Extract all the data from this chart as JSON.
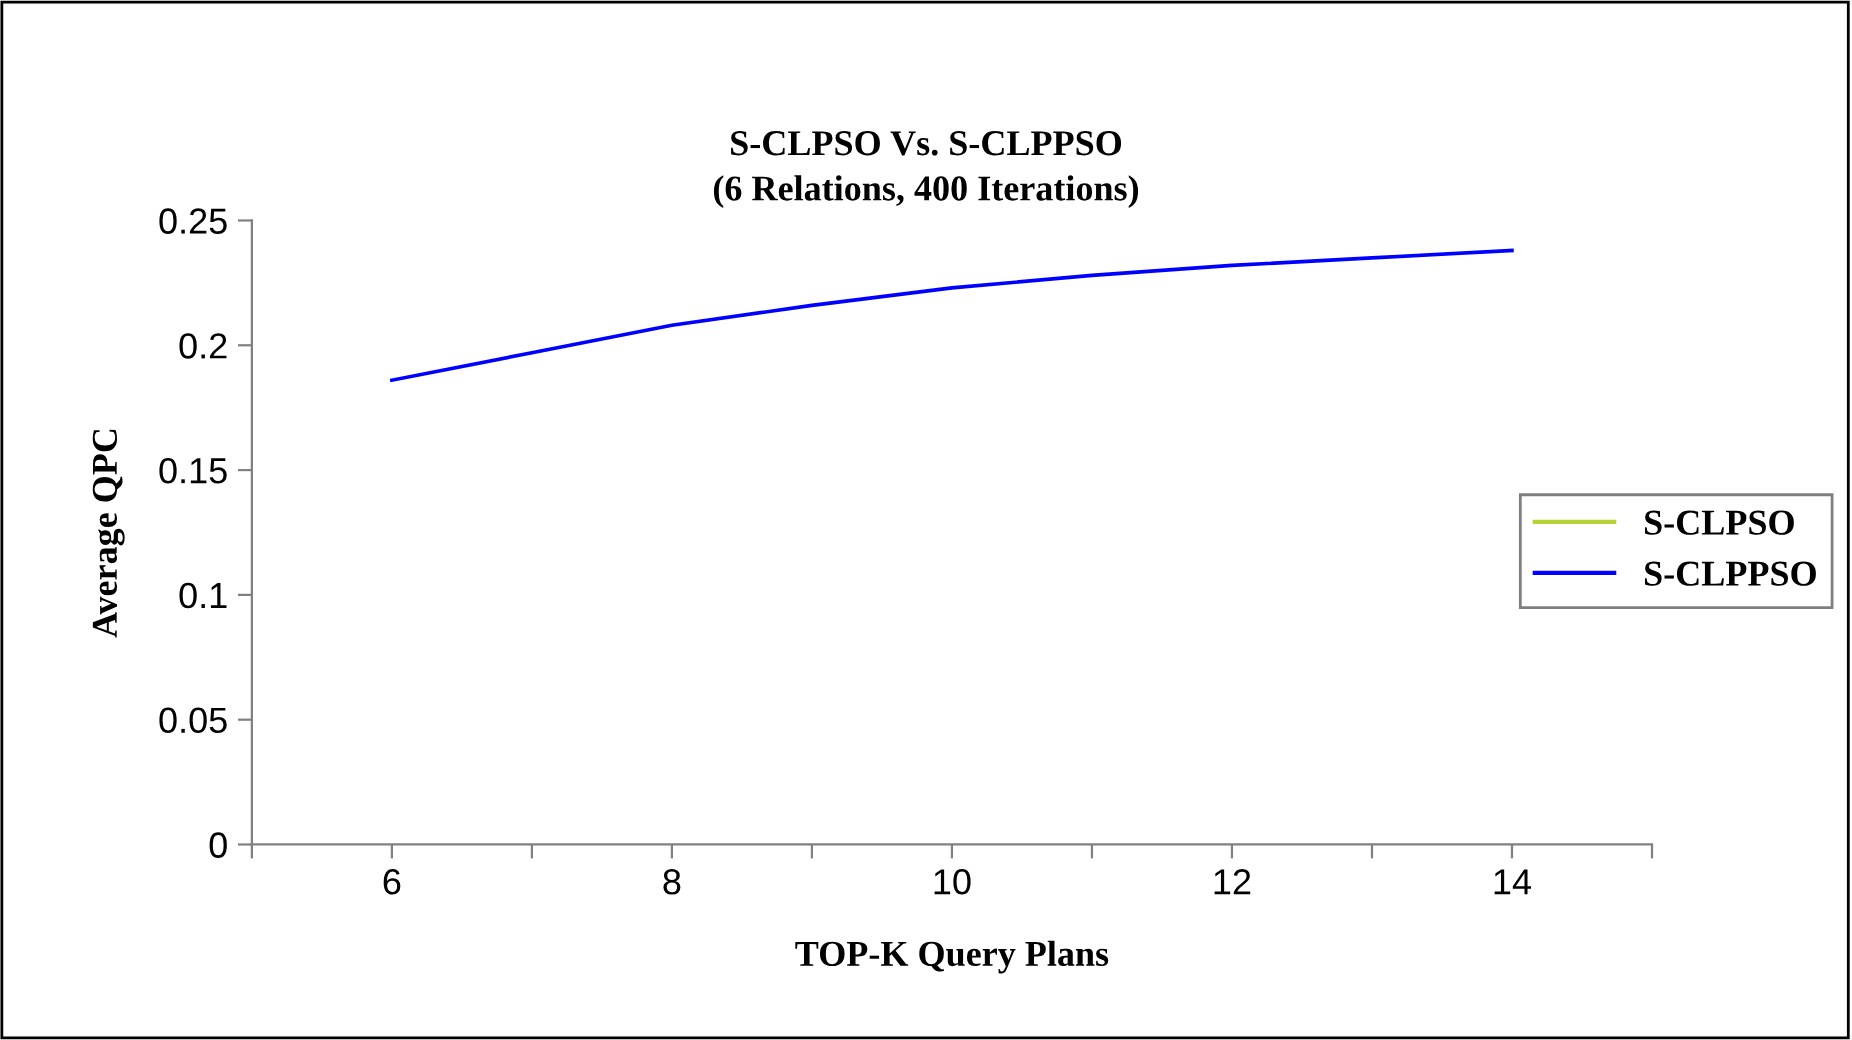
{
  "chart_data": {
    "type": "line",
    "title": "S-CLPSO Vs. S-CLPPSO\n(6 Relations, 400 Iterations)",
    "xlabel": "TOP-K Query Plans",
    "ylabel": "Average QPC",
    "x": [
      6,
      7,
      8,
      9,
      10,
      11,
      12,
      13,
      14
    ],
    "series": [
      {
        "name": "S-CLPSO",
        "color": "#b5d335",
        "values": [
          null,
          null,
          null,
          null,
          null,
          null,
          null,
          null,
          null
        ]
      },
      {
        "name": "S-CLPPSO",
        "color": "#0000ff",
        "values": [
          0.186,
          0.197,
          0.208,
          0.216,
          0.223,
          0.228,
          0.232,
          0.235,
          0.238
        ]
      }
    ],
    "xlim": [
      5,
      15
    ],
    "xticks": [
      {
        "value": 5,
        "label": null
      },
      6,
      {
        "value": 7,
        "label": null
      },
      8,
      {
        "value": 9,
        "label": null
      },
      10,
      {
        "value": 11,
        "label": null
      },
      12,
      {
        "value": 13,
        "label": null
      },
      14,
      {
        "value": 15,
        "label": null
      }
    ],
    "ylim": [
      0,
      0.25
    ],
    "yticks": [
      0,
      0.05,
      0.1,
      0.15,
      0.2,
      0.25
    ],
    "grid": false,
    "legend": "right",
    "marker": "none",
    "line_style": "solid"
  }
}
